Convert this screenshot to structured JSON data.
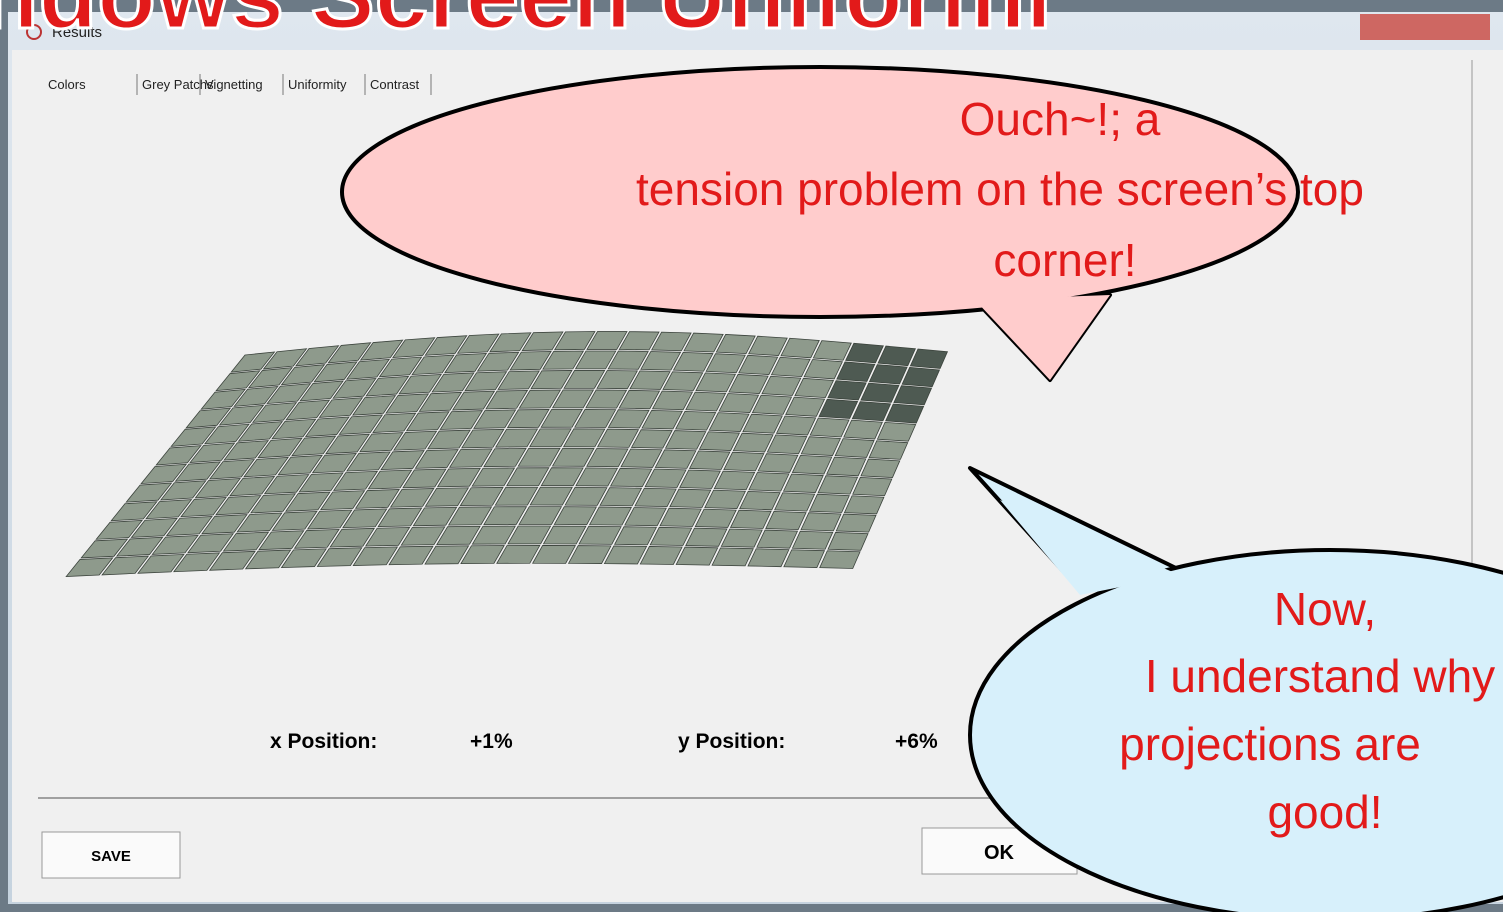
{
  "heading": "ndows Screen Uniformi",
  "window": {
    "title": "Results",
    "tabs": [
      "Colors",
      "Grey Patchs",
      "Vignetting",
      "Uniformity",
      "Contrast"
    ]
  },
  "readout": {
    "x_label": "x Position:",
    "x_value": "+1%",
    "y_label": "y Position:",
    "y_value": "+6%"
  },
  "buttons": {
    "save": "SAVE",
    "ok": "OK"
  },
  "callouts": [
    {
      "lines": [
        "Ouch~!; a",
        "tension problem on the screen’s top",
        "corner!"
      ]
    },
    {
      "lines": [
        "Now,",
        "I understand why",
        "projections are",
        "good!"
      ]
    }
  ]
}
